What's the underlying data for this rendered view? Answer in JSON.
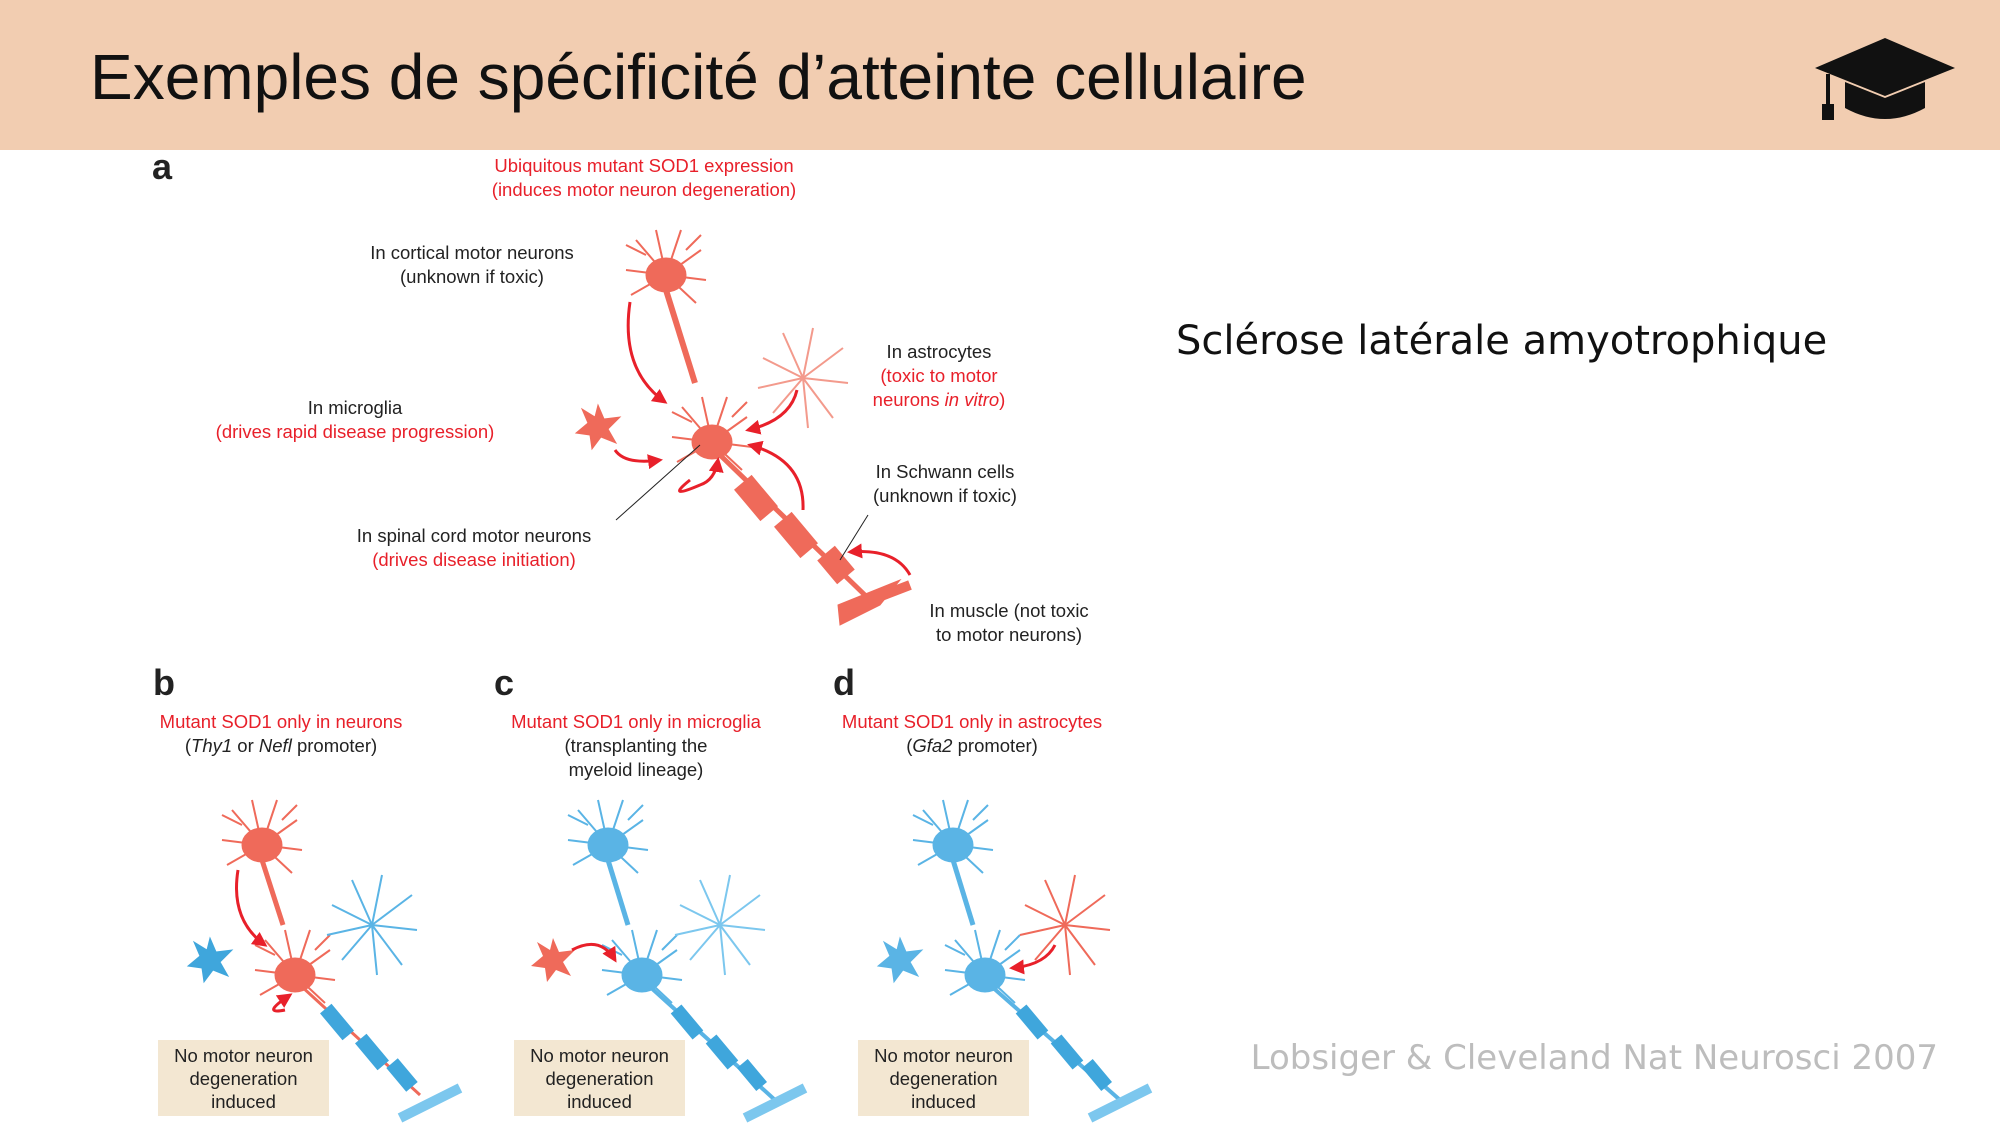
{
  "header": {
    "title": "Exemples de spécificité d’atteinte cellulaire",
    "icon": "graduation-cap-icon",
    "background": "#f2cdb1"
  },
  "side_title": "Sclérose latérale amyotrophique",
  "citation": "Lobsiger & Cleveland Nat Neurosci 2007",
  "colors": {
    "mutant": "#ef6a5a",
    "wildtype": "#5ab4e5",
    "label_red": "#e8202a"
  },
  "panel_a": {
    "label": "a",
    "top": [
      "Ubiquitous mutant SOD1 expression",
      "(induces motor neuron degeneration)"
    ],
    "cortical": [
      "In cortical motor neurons",
      "(unknown if toxic)"
    ],
    "astro": {
      "line1": "In astrocytes",
      "line2": "(toxic to motor",
      "line3a": "neurons ",
      "line3b": "in vitro",
      "line3c": ")"
    },
    "microglia": [
      "In microglia",
      "(drives rapid disease progression)"
    ],
    "schwann": [
      "In Schwann cells",
      "(unknown if toxic)"
    ],
    "spinal": [
      "In spinal cord motor neurons",
      "(drives disease initiation)"
    ],
    "muscle": [
      "In muscle (not toxic",
      "to motor neurons)"
    ]
  },
  "panel_b": {
    "label": "b",
    "title": "Mutant SOD1 only in neurons",
    "sub_a": "(",
    "sub_b": "Thy1",
    "sub_c": " or ",
    "sub_d": "Nefl",
    "sub_e": " promoter)"
  },
  "panel_c": {
    "label": "c",
    "title": "Mutant SOD1 only in microglia",
    "sub": [
      "(transplanting the",
      "myeloid lineage)"
    ]
  },
  "panel_d": {
    "label": "d",
    "title": "Mutant SOD1 only in astrocytes",
    "sub_a": "(",
    "sub_b": "Gfa2",
    "sub_c": " promoter)"
  },
  "result_box": [
    "No motor neuron",
    "degeneration",
    "induced"
  ]
}
